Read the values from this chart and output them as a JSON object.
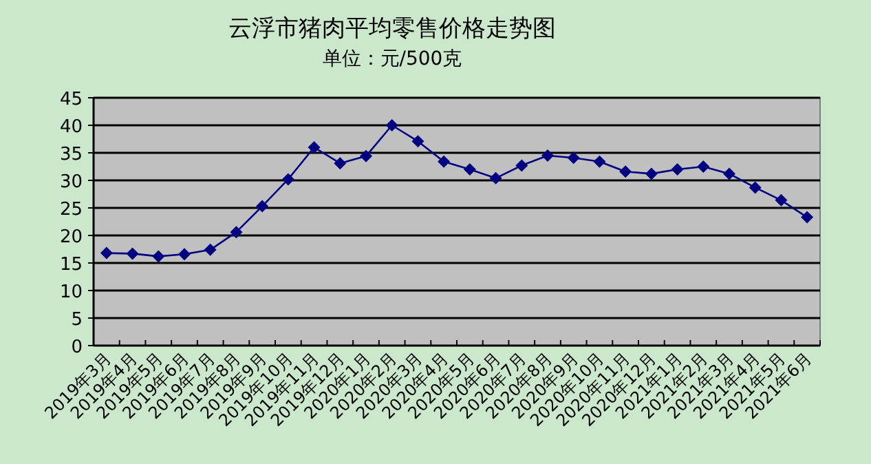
{
  "chart_data": {
    "type": "line",
    "title": "云浮市猪肉平均零售价格走势图",
    "subtitle": "单位：元/500克",
    "categories": [
      "2019年3月",
      "2019年4月",
      "2019年5月",
      "2019年6月",
      "2019年7月",
      "2019年8月",
      "2019年9月",
      "2019年10月",
      "2019年11月",
      "2019年12月",
      "2020年1月",
      "2020年2月",
      "2020年3月",
      "2020年4月",
      "2020年5月",
      "2020年6月",
      "2020年7月",
      "2020年8月",
      "2020年9月",
      "2020年10月",
      "2020年11月",
      "2020年12月",
      "2021年1月",
      "2021年2月",
      "2021年3月",
      "2021年4月",
      "2021年5月",
      "2021年6月"
    ],
    "series": [
      {
        "color": "#000080",
        "values": [
          16.8,
          16.7,
          16.2,
          16.6,
          17.4,
          20.6,
          25.3,
          30.2,
          36,
          33.1,
          34.4,
          40,
          37.1,
          33.4,
          32,
          30.4,
          32.7,
          34.5,
          34.1,
          33.4,
          31.6,
          31.2,
          32,
          32.5,
          31.2,
          28.7,
          26.4,
          23.3
        ]
      }
    ],
    "ylim": [
      0,
      45
    ],
    "yticks": [
      0,
      5,
      10,
      15,
      20,
      25,
      30,
      35,
      40,
      45
    ],
    "grid": "y",
    "marker": "diamond",
    "line_style": "solid"
  }
}
